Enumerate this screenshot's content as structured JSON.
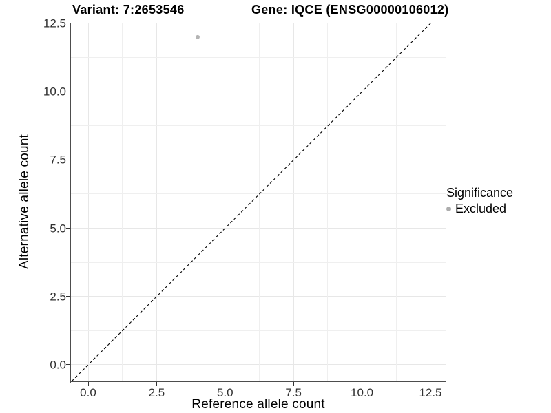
{
  "colors": {
    "background": "#ffffff",
    "grid_major": "#e7e7e7",
    "grid_minor": "#efefef",
    "axis_line": "#4d4d4d",
    "tick_mark": "#333333",
    "tick_text": "#303030",
    "text": "#000000",
    "point": "#b4b4b4",
    "legend_key": "#adadad",
    "identity_line": "#000000"
  },
  "chart_data": {
    "type": "scatter",
    "title_left": "Variant: 7:2653546",
    "title_right": "Gene: IQCE (ENSG00000106012)",
    "xlabel": "Reference allele count",
    "ylabel": "Alternative allele count",
    "xlim": [
      -0.629,
      13.054
    ],
    "ylim": [
      -0.605,
      12.525
    ],
    "xticks": [
      0,
      2.5,
      5,
      7.5,
      10,
      12.5
    ],
    "yticks": [
      0,
      2.5,
      5,
      7.5,
      10,
      12.5
    ],
    "tick_decimals": 1,
    "grid": {
      "major": true,
      "minor": true
    },
    "identity_line": {
      "style": "dashed",
      "slope": 1,
      "intercept": 0
    },
    "series": [
      {
        "name": "Excluded",
        "color": "#b4b4b4",
        "points": [
          {
            "x": 4,
            "y": 12
          }
        ]
      }
    ],
    "legend": {
      "title": "Significance",
      "position": "right",
      "entries": [
        {
          "label": "Excluded",
          "color": "#adadad"
        }
      ]
    }
  }
}
